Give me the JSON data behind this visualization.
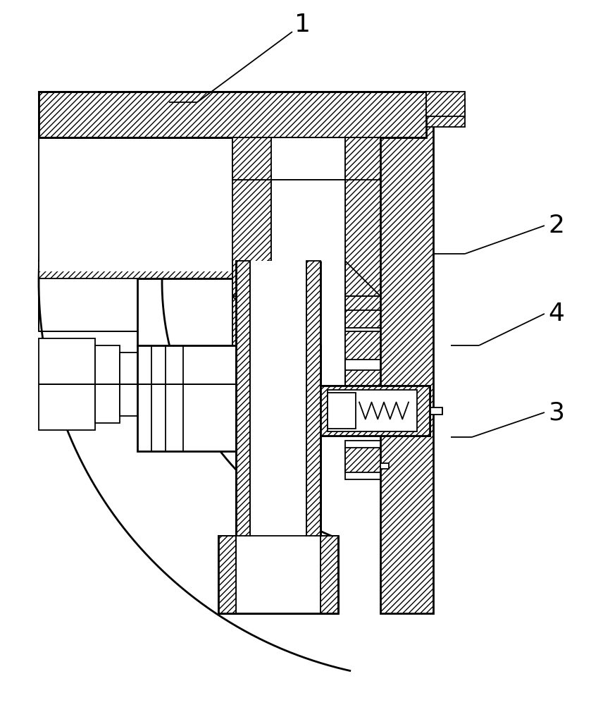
{
  "bg_color": "#ffffff",
  "line_color": "#000000",
  "label_1": "1",
  "label_2": "2",
  "label_3": "3",
  "label_4": "4",
  "label_fontsize": 26,
  "lw": 1.3,
  "lw2": 2.0
}
